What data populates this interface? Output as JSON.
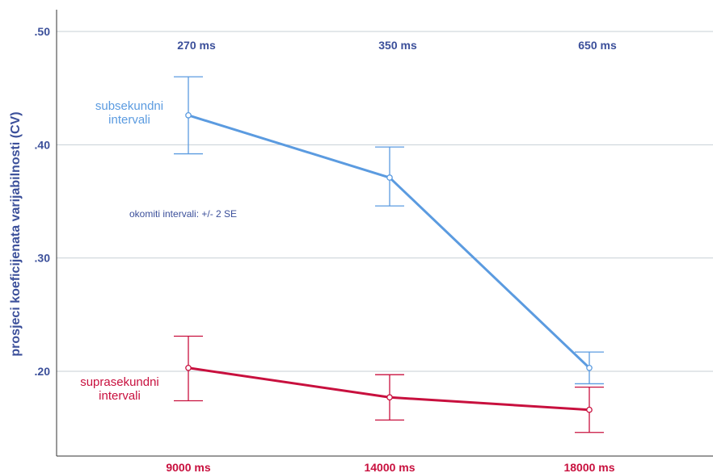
{
  "chart_data": {
    "type": "line",
    "ylabel": "prosjeci koeficijenata varijabilnosti (CV)",
    "categories": [
      "9000 ms",
      "14000 ms",
      "18000 ms"
    ],
    "top_categories": [
      "270 ms",
      "350 ms",
      "650 ms"
    ],
    "y_ticks": [
      ".20",
      ".30",
      ".40",
      ".50"
    ],
    "y_tick_values": [
      0.2,
      0.3,
      0.4,
      0.5
    ],
    "ylim": [
      0.13,
      0.52
    ],
    "grid": true,
    "note": "okomiti intervali: +/- 2 SE",
    "colors": {
      "axis_text": "#3b4f9a",
      "bottom_text": "#c8103e",
      "grid": "#c7cfd6",
      "axis_line": "#333333"
    },
    "series": [
      {
        "label_lines": [
          "subsekundni",
          "intervali"
        ],
        "color": "#5b9be0",
        "values": [
          0.426,
          0.371,
          0.203
        ],
        "upper": [
          0.46,
          0.398,
          0.217
        ],
        "lower": [
          0.392,
          0.346,
          0.189
        ]
      },
      {
        "label_lines": [
          "suprasekundni",
          "intervali"
        ],
        "color": "#c8103e",
        "values": [
          0.203,
          0.177,
          0.166
        ],
        "upper": [
          0.231,
          0.197,
          0.186
        ],
        "lower": [
          0.174,
          0.157,
          0.146
        ]
      }
    ]
  }
}
